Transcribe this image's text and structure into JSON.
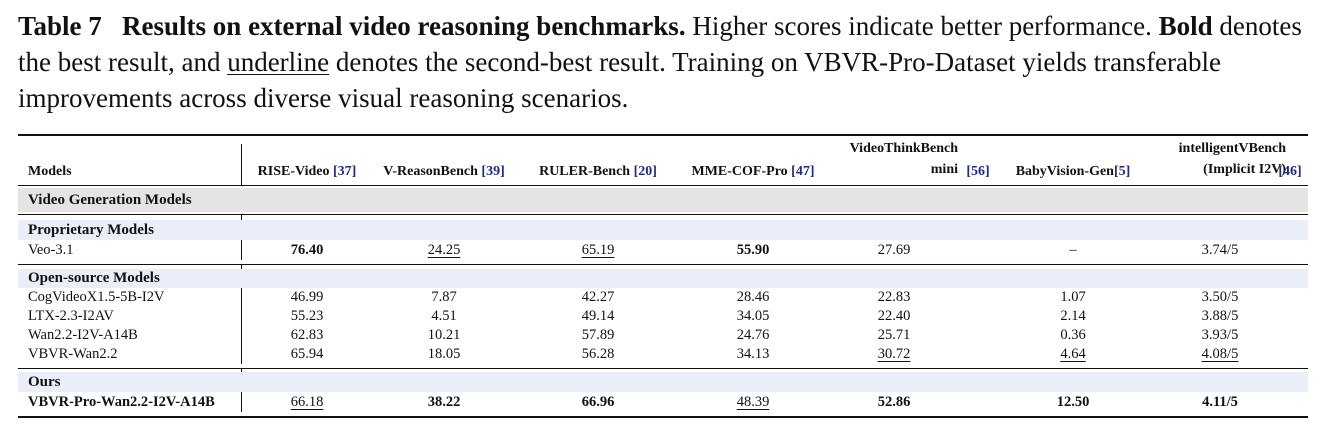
{
  "caption": {
    "label": "Table 7",
    "title": "Results on external video reasoning benchmarks.",
    "text1": " Higher scores indicate better performance. ",
    "bold_word": "Bold",
    "text2": " denotes the best result, and ",
    "underline_word": "underline",
    "text3": " denotes the second-best result. Training on VBVR-Pro-Dataset yields transferable improvements across diverse visual reasoning scenarios."
  },
  "header": {
    "models": "Models",
    "columns": [
      {
        "name": "RISE-Video",
        "cite": "[37]"
      },
      {
        "name": "V-ReasonBench",
        "cite": "[39]"
      },
      {
        "name": "RULER-Bench",
        "cite": "[20]"
      },
      {
        "name": "MME-COF-Pro",
        "cite": "[47]"
      },
      {
        "line1": "VideoThinkBench",
        "line2": "mini",
        "cite": "[56]"
      },
      {
        "name": "BabyVision-Gen",
        "cite": "[5]"
      },
      {
        "line1": "intelligentVBench",
        "line2": "(Implicit I2V)",
        "cite": "[46]"
      }
    ]
  },
  "sections": {
    "video_generation": "Video Generation Models",
    "proprietary": "Proprietary Models",
    "open_source": "Open-source Models",
    "ours": "Ours"
  },
  "rows": {
    "veo": {
      "model": "Veo-3.1",
      "values": [
        "76.40",
        "24.25",
        "65.19",
        "55.90",
        "27.69",
        "–",
        "3.74/5"
      ]
    },
    "cog": {
      "model": "CogVideoX1.5-5B-I2V",
      "values": [
        "46.99",
        "7.87",
        "42.27",
        "28.46",
        "22.83",
        "1.07",
        "3.50/5"
      ]
    },
    "ltx": {
      "model": "LTX-2.3-I2AV",
      "values": [
        "55.23",
        "4.51",
        "49.14",
        "34.05",
        "22.40",
        "2.14",
        "3.88/5"
      ]
    },
    "wan": {
      "model": "Wan2.2-I2V-A14B",
      "values": [
        "62.83",
        "10.21",
        "57.89",
        "24.76",
        "25.71",
        "0.36",
        "3.93/5"
      ]
    },
    "vbvr": {
      "model": "VBVR-Wan2.2",
      "values": [
        "65.94",
        "18.05",
        "56.28",
        "34.13",
        "30.72",
        "4.64",
        "4.08/5"
      ]
    },
    "ours": {
      "model": "VBVR-Pro-Wan2.2-I2V-A14B",
      "values": [
        "66.18",
        "38.22",
        "66.96",
        "48.39",
        "52.86",
        "12.50",
        "4.11/5"
      ]
    }
  }
}
